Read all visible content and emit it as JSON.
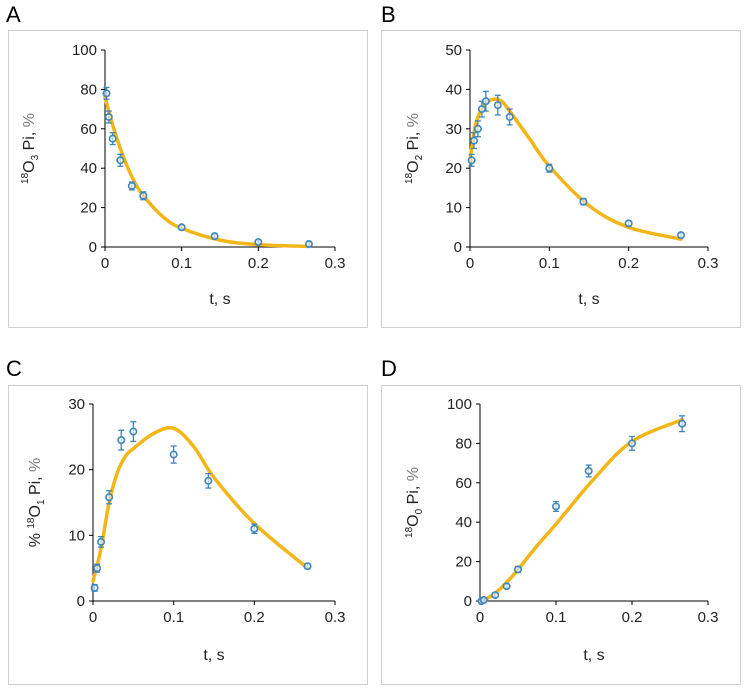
{
  "colors": {
    "fit_line": "#F2B619",
    "marker": "#3F86B8",
    "axis": "#8c8c8c",
    "frame": "#d0d0d0"
  },
  "chart_data": [
    {
      "panel": "A",
      "type": "scatter",
      "ylabel_sup": "18",
      "ylabel_base": "O",
      "ylabel_sub": "3",
      "ylabel_rest": " Pi, ",
      "ylabel_unit": "%",
      "xlabel": "t, s",
      "xlim": [
        0,
        0.3
      ],
      "ylim": [
        0,
        100
      ],
      "xticks": [
        "0",
        "0.1",
        "0.2",
        "0.3"
      ],
      "yticks": [
        "0",
        "20",
        "40",
        "60",
        "80",
        "100"
      ],
      "grid": false,
      "series": [
        {
          "kind": "points",
          "x": [
            0.002,
            0.005,
            0.01,
            0.02,
            0.035,
            0.05,
            0.1,
            0.143,
            0.2,
            0.266
          ],
          "y": [
            78,
            66,
            55,
            44,
            31,
            26,
            10,
            5.5,
            2.5,
            1.5
          ],
          "err": [
            3,
            3,
            3,
            3,
            2,
            2,
            1,
            1,
            1,
            1
          ]
        },
        {
          "kind": "fit",
          "x": [
            0,
            0.01,
            0.02,
            0.03,
            0.04,
            0.05,
            0.075,
            0.1,
            0.15,
            0.2,
            0.266
          ],
          "y": [
            76,
            62,
            50,
            40,
            32,
            26,
            15.5,
            9.5,
            3.5,
            1.2,
            0.3
          ]
        }
      ]
    },
    {
      "panel": "B",
      "type": "scatter",
      "ylabel_sup": "18",
      "ylabel_base": "O",
      "ylabel_sub": "2",
      "ylabel_rest": " Pi, ",
      "ylabel_unit": "%",
      "xlabel": "t, s",
      "xlim": [
        0,
        0.3
      ],
      "ylim": [
        0,
        50
      ],
      "xticks": [
        "0",
        "0.1",
        "0.2",
        "0.3"
      ],
      "yticks": [
        "0",
        "10",
        "20",
        "30",
        "40",
        "50"
      ],
      "grid": false,
      "series": [
        {
          "kind": "points",
          "x": [
            0.002,
            0.005,
            0.01,
            0.015,
            0.02,
            0.035,
            0.05,
            0.1,
            0.143,
            0.2,
            0.266
          ],
          "y": [
            22,
            27,
            30,
            35,
            37,
            36,
            33,
            20,
            11.5,
            6,
            3
          ],
          "err": [
            1.5,
            2,
            2,
            2,
            2.5,
            2.5,
            2,
            1,
            0.8,
            0.6,
            0.5
          ]
        },
        {
          "kind": "fit",
          "x": [
            0,
            0.005,
            0.01,
            0.02,
            0.03,
            0.04,
            0.05,
            0.075,
            0.1,
            0.15,
            0.2,
            0.266
          ],
          "y": [
            22,
            29,
            33,
            36.5,
            37.5,
            37,
            34.5,
            27.5,
            20.5,
            10.5,
            5,
            2
          ]
        }
      ]
    },
    {
      "panel": "C",
      "type": "scatter",
      "ylabel_sup": "18",
      "ylabel_prefix": "% ",
      "ylabel_base": "O",
      "ylabel_sub": "1",
      "ylabel_rest": " Pi, ",
      "ylabel_unit": "%",
      "xlabel": "t, s",
      "xlim": [
        0,
        0.3
      ],
      "ylim": [
        0,
        30
      ],
      "xticks": [
        "0",
        "0.1",
        "0.2",
        "0.3"
      ],
      "yticks": [
        "0",
        "10",
        "20",
        "30"
      ],
      "grid": false,
      "series": [
        {
          "kind": "points",
          "x": [
            0.002,
            0.005,
            0.01,
            0.02,
            0.035,
            0.05,
            0.1,
            0.143,
            0.2,
            0.266
          ],
          "y": [
            2,
            5,
            9,
            15.8,
            24.5,
            25.8,
            22.3,
            18.3,
            11,
            5.3
          ],
          "err": [
            0.5,
            0.6,
            0.8,
            1,
            1.5,
            1.5,
            1.3,
            1.1,
            0.7,
            0.4
          ]
        },
        {
          "kind": "fit",
          "x": [
            0,
            0.01,
            0.02,
            0.03,
            0.04,
            0.05,
            0.075,
            0.1,
            0.125,
            0.15,
            0.2,
            0.266
          ],
          "y": [
            3,
            8,
            15,
            19.5,
            22,
            23.2,
            25.5,
            26.3,
            23.5,
            18.8,
            11.8,
            5
          ]
        }
      ]
    },
    {
      "panel": "D",
      "type": "scatter",
      "ylabel_sup": "18",
      "ylabel_base": "O",
      "ylabel_sub": "0",
      "ylabel_rest": " Pi, ",
      "ylabel_unit": "%",
      "xlabel": "t, s",
      "xlim": [
        0,
        0.3
      ],
      "ylim": [
        0,
        100
      ],
      "xticks": [
        "0",
        "0.1",
        "0.2",
        "0.3"
      ],
      "yticks": [
        "0",
        "20",
        "40",
        "60",
        "80",
        "100"
      ],
      "grid": false,
      "series": [
        {
          "kind": "points",
          "x": [
            0.002,
            0.005,
            0.02,
            0.035,
            0.05,
            0.1,
            0.143,
            0.2,
            0.266
          ],
          "y": [
            0,
            0.5,
            3,
            7.5,
            16,
            48,
            66,
            80,
            90
          ],
          "err": [
            0.5,
            0.5,
            1,
            1,
            1.5,
            2.5,
            3,
            3.5,
            4
          ]
        },
        {
          "kind": "fit",
          "x": [
            0,
            0.01,
            0.02,
            0.03,
            0.04,
            0.05,
            0.075,
            0.1,
            0.15,
            0.2,
            0.266
          ],
          "y": [
            0,
            1.5,
            4,
            7.5,
            11.5,
            16,
            28,
            39,
            62,
            81,
            92
          ]
        }
      ]
    }
  ]
}
